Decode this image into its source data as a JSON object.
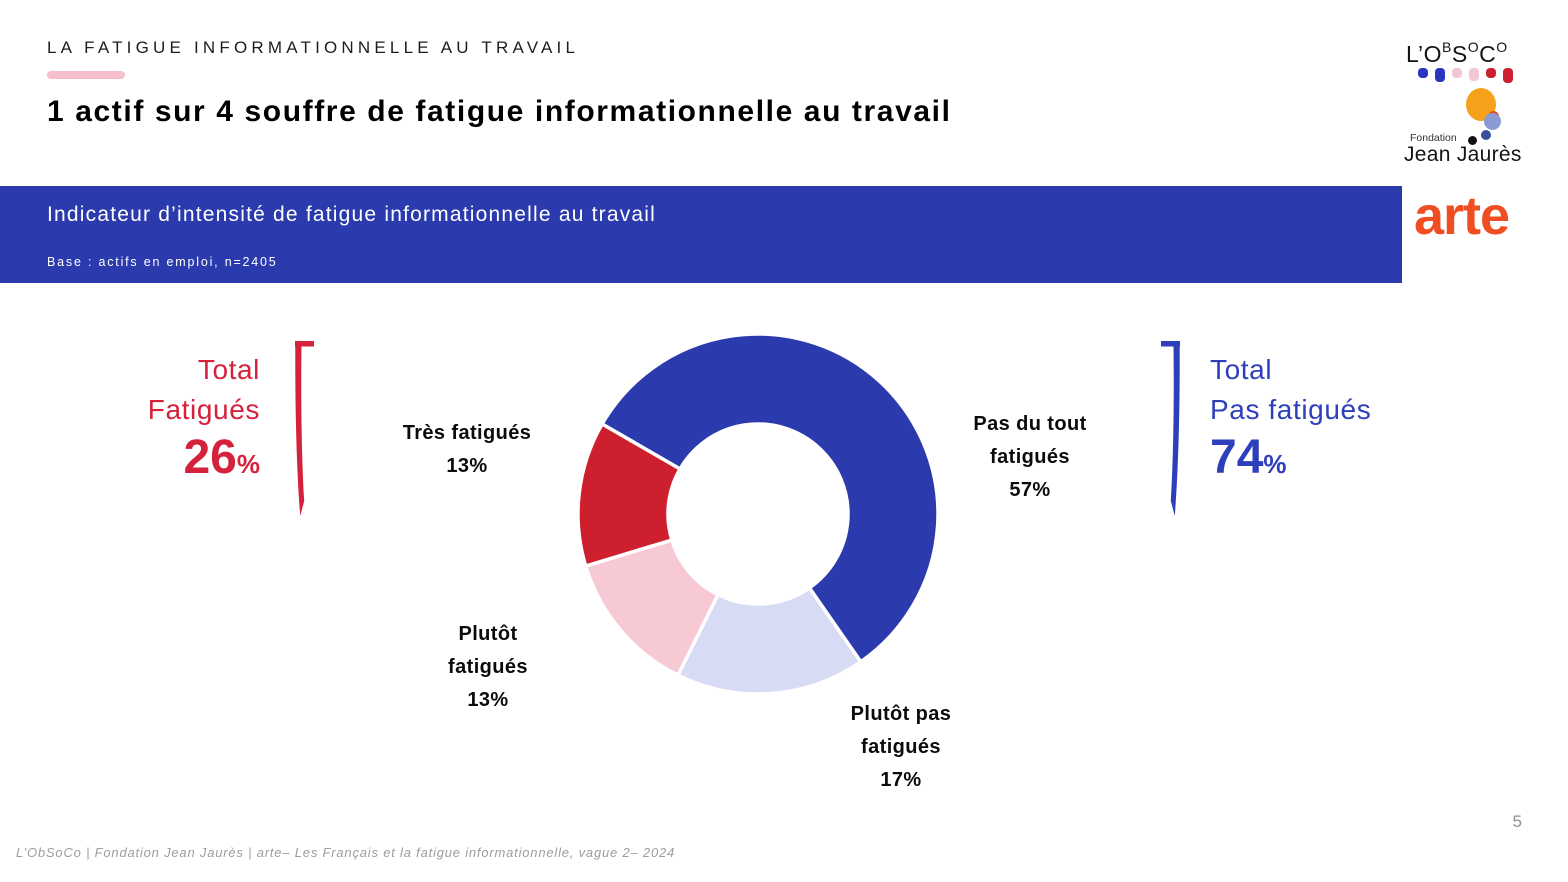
{
  "page": {
    "eyebrow": "LA FATIGUE INFORMATIONNELLE AU TRAVAIL",
    "title": "1 actif sur 4 souffre de fatigue informationnelle au travail",
    "footer": "L’ObSoCo | Fondation Jean Jaurès | arte– Les Français et la fatigue informationnelle, vague 2– 2024",
    "page_number": "5",
    "accent_underline_color": "#f5bfcb"
  },
  "banner": {
    "title": "Indicateur d’intensité de fatigue informationnelle au travail",
    "base": "Base : actifs en emploi, n=2405",
    "background_color": "#2b3aad",
    "text_color": "#ffffff"
  },
  "logos": {
    "obsoco": {
      "name": "L'ObSoCo",
      "letters": [
        {
          "t": "L’",
          "s": "lg"
        },
        {
          "t": "O",
          "s": "lg"
        },
        {
          "t": "B",
          "s": "sup"
        },
        {
          "t": "S",
          "s": "lg"
        },
        {
          "t": "O",
          "s": "sup"
        },
        {
          "t": "C",
          "s": "lg"
        },
        {
          "t": "O",
          "s": "sup"
        }
      ],
      "dots": [
        {
          "color": "#2b36c0",
          "h": 10
        },
        {
          "color": "#2b36c0",
          "h": 14
        },
        {
          "color": "#f2c7d4",
          "h": 10
        },
        {
          "color": "#f2c7d4",
          "h": 13
        },
        {
          "color": "#ce2130",
          "h": 10
        },
        {
          "color": "#ce2130",
          "h": 15
        }
      ]
    },
    "fondation_jean_jaures": {
      "small_text": "Fondation",
      "large_text": "Jean Jaurès"
    },
    "arte": {
      "text": "arte",
      "color": "#ef4e22"
    }
  },
  "totals": {
    "fatigued": {
      "line1": "Total",
      "line2": "Fatigués",
      "value": "26",
      "percent_sign": "%",
      "color": "#d4213c"
    },
    "not_fatigued": {
      "line1": "Total",
      "line2": "Pas fatigués",
      "value": "74",
      "percent_sign": "%",
      "color": "#2e3fbc"
    }
  },
  "chart_labels": {
    "tres": [
      "Très fatigués",
      "13%"
    ],
    "pas_du_tout": [
      "Pas du tout",
      "fatigués",
      "57%"
    ],
    "plutot": [
      "Plutôt",
      "fatigués",
      "13%"
    ],
    "plutot_pas": [
      "Plutôt pas",
      "fatigués",
      "17%"
    ]
  },
  "chart_data": {
    "type": "pie",
    "subtype": "donut",
    "title": "Indicateur d’intensité de fatigue informationnelle au travail",
    "base": "Base : actifs en emploi, n=2405",
    "start_angle_deg": 300,
    "direction": "clockwise",
    "inner_radius_ratio": 0.5,
    "segments": [
      {
        "label": "Pas du tout fatigués",
        "value": 57,
        "color": "#2b3aad"
      },
      {
        "label": "Plutôt pas fatigués",
        "value": 17,
        "color": "#d8dbf4"
      },
      {
        "label": "Plutôt fatigués",
        "value": 13,
        "color": "#f7c9d4"
      },
      {
        "label": "Très fatigués",
        "value": 13,
        "color": "#ce1f2e"
      }
    ],
    "totals": [
      {
        "label": "Total Fatigués",
        "value": 26,
        "color": "#d4213c"
      },
      {
        "label": "Total Pas fatigués",
        "value": 74,
        "color": "#2e3fbc"
      }
    ],
    "legend_position": "around",
    "grid": false
  }
}
